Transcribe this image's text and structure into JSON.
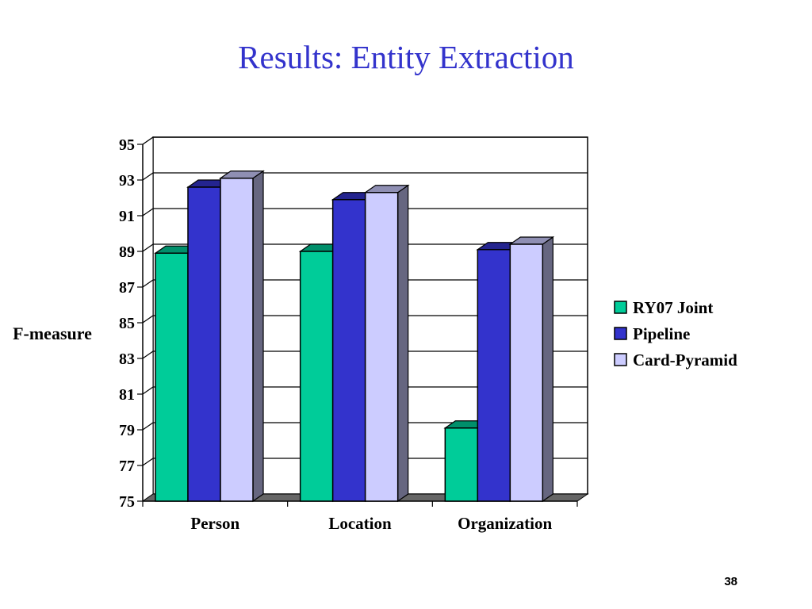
{
  "slide": {
    "title": "Results: Entity Extraction",
    "page_number": "38"
  },
  "chart_data": {
    "type": "bar",
    "title": "",
    "ylabel": "F-measure",
    "xlabel": "",
    "categories": [
      "Person",
      "Location",
      "Organization"
    ],
    "series": [
      {
        "name": "RY07 Joint",
        "values": [
          88.9,
          89.0,
          79.1
        ],
        "color": "#00cc99"
      },
      {
        "name": "Pipeline",
        "values": [
          92.6,
          91.9,
          89.1
        ],
        "color": "#3333cc"
      },
      {
        "name": "Card-Pyramid",
        "values": [
          93.1,
          92.3,
          89.4
        ],
        "color": "#ccccff"
      }
    ],
    "ylim": [
      75,
      95
    ],
    "yticks": [
      "75",
      "77",
      "79",
      "81",
      "83",
      "85",
      "87",
      "89",
      "91",
      "93",
      "95"
    ],
    "grid": true,
    "style": "3d-bar",
    "legend_position": "right"
  }
}
